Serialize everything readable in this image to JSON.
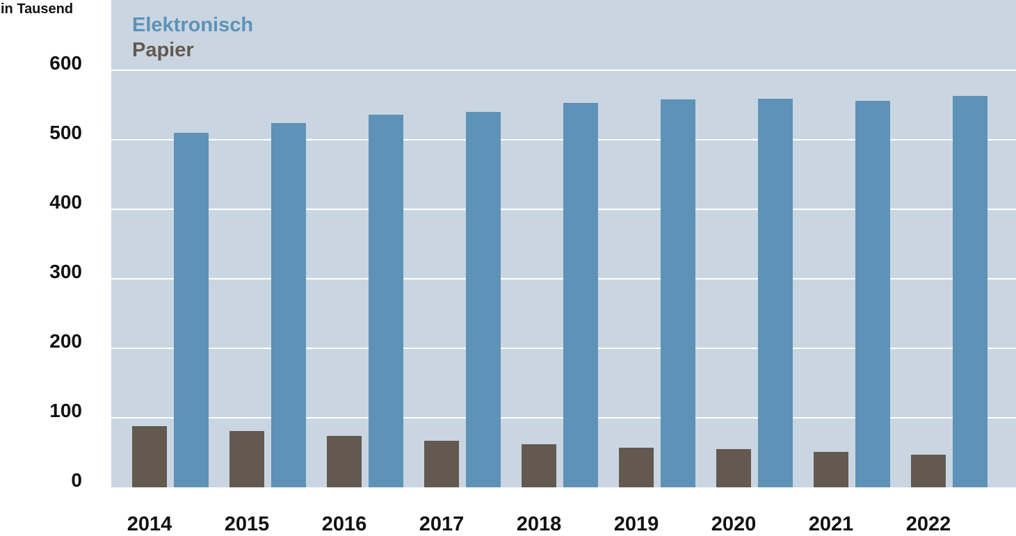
{
  "chart_data": {
    "type": "bar",
    "title": "",
    "ylabel": "in Tausend",
    "xlabel": "",
    "categories": [
      "2014",
      "2015",
      "2016",
      "2017",
      "2018",
      "2019",
      "2020",
      "2021",
      "2022"
    ],
    "series": [
      {
        "name": "Papier",
        "color": "#63594e",
        "values": [
          88,
          81,
          74,
          67,
          62,
          57,
          55,
          51,
          47
        ]
      },
      {
        "name": "Elektronisch",
        "color": "#5e92b6",
        "values": [
          510,
          524,
          536,
          540,
          553,
          558,
          559,
          556,
          563
        ]
      }
    ],
    "ylim": [
      0,
      600
    ],
    "yticks": [
      "0",
      "100",
      "200",
      "300",
      "400",
      "500",
      "600"
    ],
    "grid": true,
    "legend": {
      "placement": "top-left",
      "entries": [
        "Elektronisch",
        "Papier"
      ]
    },
    "plot_background": "#c9d6e2",
    "gridline_color": "#ffffff"
  }
}
